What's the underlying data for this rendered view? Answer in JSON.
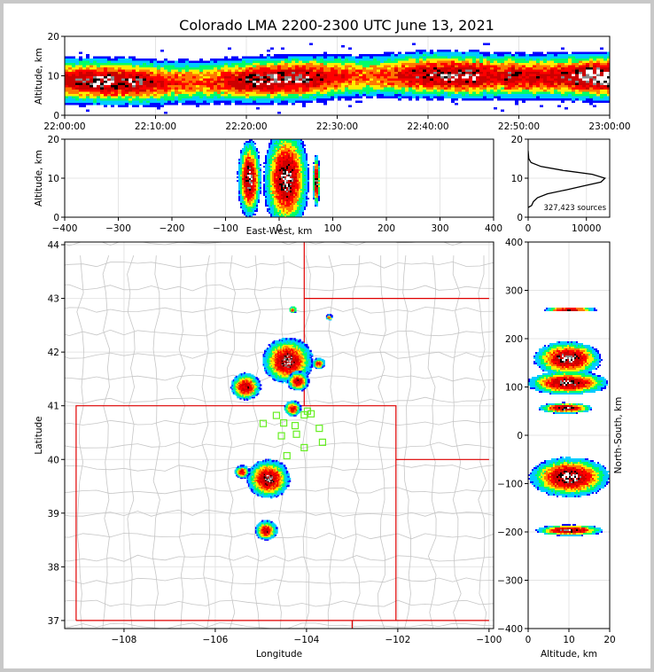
{
  "chart_data": [
    {
      "panel": "altitude-time",
      "type": "heatmap",
      "title": "Colorado LMA 2200-2300 UTC June 13, 2021",
      "xlabel": "",
      "ylabel": "Altitude, km",
      "xticks": [
        "22:00:00",
        "22:10:00",
        "22:20:00",
        "22:30:00",
        "22:40:00",
        "22:50:00",
        "23:00:00"
      ],
      "yticks": [
        0,
        10,
        20
      ],
      "ylim": [
        0,
        20
      ],
      "x_minutes": [
        0,
        60
      ],
      "density_core": [
        {
          "t": 0,
          "alt": 9
        },
        {
          "t": 10,
          "alt": 8.5
        },
        {
          "t": 20,
          "alt": 9
        },
        {
          "t": 30,
          "alt": 10
        },
        {
          "t": 40,
          "alt": 10.5
        },
        {
          "t": 50,
          "alt": 10
        },
        {
          "t": 55,
          "alt": 10
        },
        {
          "t": 60,
          "alt": 10
        }
      ]
    },
    {
      "panel": "altitude-eastwest",
      "type": "heatmap",
      "xlabel": "East-West, km",
      "ylabel": "Altitude, km",
      "xticks": [
        -400,
        -300,
        -200,
        -100,
        0,
        100,
        200,
        300,
        400
      ],
      "yticks": [
        0,
        10,
        20
      ],
      "xlim": [
        -400,
        400
      ],
      "ylim": [
        0,
        20
      ],
      "clusters": [
        {
          "x": -57,
          "alt": 10,
          "wx": 13,
          "wy": 6
        },
        {
          "x": 12,
          "alt": 10,
          "wx": 25,
          "wy": 8
        },
        {
          "x": 68,
          "alt": 9.5,
          "wx": 4,
          "wy": 4
        }
      ]
    },
    {
      "panel": "altitude-histogram",
      "type": "line",
      "xticks": [
        0,
        10000
      ],
      "yticks": [
        0,
        10,
        20
      ],
      "xlim": [
        0,
        14000
      ],
      "ylim": [
        0,
        20
      ],
      "annotation": "327,423 sources",
      "profile": [
        {
          "alt": 2.5,
          "count": 0
        },
        {
          "alt": 3,
          "count": 600
        },
        {
          "alt": 4,
          "count": 900
        },
        {
          "alt": 5,
          "count": 1600
        },
        {
          "alt": 6,
          "count": 3300
        },
        {
          "alt": 7,
          "count": 6500
        },
        {
          "alt": 8,
          "count": 9500
        },
        {
          "alt": 9,
          "count": 12500
        },
        {
          "alt": 10,
          "count": 13200
        },
        {
          "alt": 11,
          "count": 11000
        },
        {
          "alt": 12,
          "count": 6000
        },
        {
          "alt": 13,
          "count": 2200
        },
        {
          "alt": 14,
          "count": 500
        },
        {
          "alt": 15,
          "count": 100
        },
        {
          "alt": 17,
          "count": 0
        }
      ]
    },
    {
      "panel": "plan-view",
      "type": "scatter",
      "xlabel": "Longitude",
      "ylabel": "Latitude",
      "xticks": [
        -108,
        -106,
        -104,
        -102,
        -100
      ],
      "yticks": [
        37,
        38,
        39,
        40,
        41,
        42,
        43,
        44
      ],
      "xlim": [
        -109.3,
        -99.9
      ],
      "ylim": [
        36.85,
        44.05
      ],
      "stations": [
        {
          "lon": -104.66,
          "lat": 40.82
        },
        {
          "lon": -104.95,
          "lat": 40.67
        },
        {
          "lon": -104.5,
          "lat": 40.68
        },
        {
          "lon": -104.25,
          "lat": 40.63
        },
        {
          "lon": -104.05,
          "lat": 40.83
        },
        {
          "lon": -103.9,
          "lat": 40.85
        },
        {
          "lon": -104.55,
          "lat": 40.44
        },
        {
          "lon": -104.22,
          "lat": 40.47
        },
        {
          "lon": -103.72,
          "lat": 40.58
        },
        {
          "lon": -103.65,
          "lat": 40.32
        },
        {
          "lon": -104.05,
          "lat": 40.22
        },
        {
          "lon": -104.43,
          "lat": 40.07
        },
        {
          "lon": -103.98,
          "lat": 40.9
        }
      ],
      "storms": [
        {
          "lon": -104.43,
          "lat": 41.86,
          "r": 1.0
        },
        {
          "lon": -105.35,
          "lat": 41.38,
          "r": 0.6
        },
        {
          "lon": -104.2,
          "lat": 41.48,
          "r": 0.45
        },
        {
          "lon": -104.85,
          "lat": 39.66,
          "r": 0.85
        },
        {
          "lon": -105.43,
          "lat": 39.79,
          "r": 0.3
        },
        {
          "lon": -104.9,
          "lat": 38.7,
          "r": 0.45
        },
        {
          "lon": -104.32,
          "lat": 40.97,
          "r": 0.35
        },
        {
          "lon": -103.75,
          "lat": 41.81,
          "r": 0.25
        },
        {
          "lon": -104.32,
          "lat": 42.81,
          "r": 0.15
        },
        {
          "lon": -103.52,
          "lat": 42.67,
          "r": 0.12
        }
      ]
    },
    {
      "panel": "altitude-northsouth",
      "type": "heatmap",
      "xlabel": "Altitude, km",
      "ylabel": "North-South, km",
      "xticks": [
        0,
        10,
        20
      ],
      "yticks": [
        -400,
        -300,
        -200,
        -100,
        0,
        100,
        200,
        300,
        400
      ],
      "xlim": [
        0,
        20
      ],
      "ylim": [
        -400,
        400
      ],
      "clusters": [
        {
          "y": 160,
          "alt": 9.5,
          "wx": 5,
          "wy": 22
        },
        {
          "y": 110,
          "alt": 9.5,
          "wx": 6,
          "wy": 15
        },
        {
          "y": 58,
          "alt": 9.0,
          "wx": 4,
          "wy": 7
        },
        {
          "y": -85,
          "alt": 10,
          "wx": 6,
          "wy": 25
        },
        {
          "y": -195,
          "alt": 10,
          "wx": 5,
          "wy": 7
        },
        {
          "y": 262,
          "alt": 10,
          "wx": 4,
          "wy": 3
        }
      ]
    }
  ]
}
